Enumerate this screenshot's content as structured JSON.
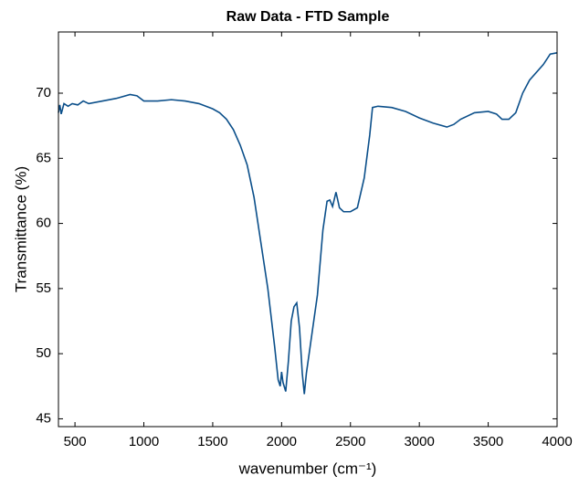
{
  "chart_data": {
    "type": "line",
    "title": "Raw Data - FTD Sample",
    "xlabel": "wavenumber (cm⁻¹)",
    "ylabel": "Transmittance (%)",
    "xlim": [
      380,
      4000
    ],
    "ylim": [
      44.4,
      74.7
    ],
    "xticks": [
      500,
      1000,
      1500,
      2000,
      2500,
      3000,
      3500,
      4000
    ],
    "yticks": [
      45,
      50,
      55,
      60,
      65,
      70
    ],
    "series": [
      {
        "color": "#0b4f8a",
        "x": [
          380,
          390,
          400,
          420,
          450,
          480,
          520,
          560,
          600,
          700,
          800,
          900,
          950,
          1000,
          1100,
          1200,
          1300,
          1400,
          1500,
          1550,
          1600,
          1650,
          1700,
          1750,
          1800,
          1850,
          1900,
          1950,
          1975,
          1990,
          2000,
          2010,
          2030,
          2050,
          2070,
          2090,
          2110,
          2130,
          2150,
          2165,
          2180,
          2220,
          2260,
          2300,
          2330,
          2350,
          2370,
          2395,
          2420,
          2450,
          2500,
          2550,
          2600,
          2640,
          2660,
          2700,
          2800,
          2900,
          3000,
          3100,
          3200,
          3250,
          3300,
          3400,
          3500,
          3560,
          3600,
          3650,
          3700,
          3750,
          3800,
          3900,
          3950,
          4000
        ],
        "values": [
          68.5,
          69.1,
          68.4,
          69.2,
          69.0,
          69.2,
          69.1,
          69.4,
          69.2,
          69.4,
          69.6,
          69.9,
          69.8,
          69.4,
          69.4,
          69.5,
          69.4,
          69.2,
          68.8,
          68.5,
          68.0,
          67.2,
          66.0,
          64.5,
          62.0,
          58.5,
          55.0,
          50.5,
          48.0,
          47.5,
          48.6,
          47.8,
          47.1,
          49.5,
          52.5,
          53.6,
          53.9,
          52.0,
          48.5,
          46.9,
          48.5,
          51.5,
          54.5,
          59.5,
          61.7,
          61.8,
          61.3,
          62.4,
          61.2,
          60.9,
          60.9,
          61.2,
          63.5,
          66.8,
          68.9,
          69.0,
          68.9,
          68.6,
          68.1,
          67.7,
          67.4,
          67.6,
          68.0,
          68.5,
          68.6,
          68.4,
          68.0,
          68.0,
          68.5,
          70.0,
          71.0,
          72.2,
          73.0,
          73.1
        ]
      }
    ]
  }
}
